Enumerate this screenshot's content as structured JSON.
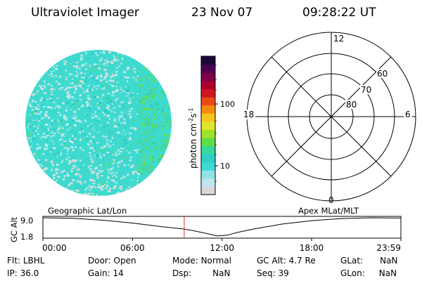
{
  "header": {
    "instrument": "Ultraviolet Imager",
    "date": "23 Nov 07",
    "time": "09:28:22 UT"
  },
  "colorbar": {
    "label_base": "photon cm",
    "label_exp1": "-2",
    "label_mid": "s",
    "label_exp2": "-1",
    "ticks": [
      "100",
      "10"
    ],
    "colors": [
      "#d8d8d8",
      "#bfe6ea",
      "#8fe3e6",
      "#3fdad7",
      "#2ecfc4",
      "#37d899",
      "#5ddf4a",
      "#9be22a",
      "#dfe62a",
      "#f7c31e",
      "#f58a10",
      "#ec4a14",
      "#d1161f",
      "#aa0030",
      "#7d0046",
      "#4d0050",
      "#1a0a3c"
    ]
  },
  "polar_plot": {
    "mlt_labels": {
      "top": "12",
      "bottom": "0",
      "left": "18",
      "right": "6"
    },
    "lat_labels": [
      "60",
      "70",
      "80"
    ]
  },
  "timeline": {
    "left_caption": "Geographic Lat/Lon",
    "right_caption": "Apex MLat/MLT",
    "axis_title": "GC Alt",
    "y_ticks": [
      "9.0",
      "1.8"
    ],
    "x_ticks": [
      "00:00",
      "06:00",
      "12:00",
      "18:00",
      "23:59"
    ],
    "marker_time": "09:28",
    "marker_color": "#d03030"
  },
  "chart_data": {
    "type": "line",
    "title": "",
    "xlabel": "",
    "ylabel": "GC Alt",
    "ylim": [
      1.8,
      9.0
    ],
    "xlim": [
      "00:00",
      "23:59"
    ],
    "series": [
      {
        "x": [
          "00:00",
          "02:00",
          "04:00",
          "06:00",
          "08:00",
          "09:28",
          "10:00",
          "11:00",
          "11:40",
          "12:20",
          "13:00",
          "14:00",
          "16:00",
          "18:00",
          "20:00",
          "22:00",
          "23:59"
        ],
        "values": [
          9.0,
          8.8,
          8.1,
          7.0,
          5.6,
          4.7,
          4.2,
          3.0,
          2.1,
          2.4,
          3.4,
          4.6,
          6.6,
          7.9,
          8.7,
          9.0,
          8.9
        ]
      }
    ]
  },
  "footer": {
    "row1": [
      {
        "label": "Flt:",
        "value": "LBHL"
      },
      {
        "label": "Door:",
        "value": "Open"
      },
      {
        "label": "Mode:",
        "value": "Normal"
      },
      {
        "label": "GC Alt:",
        "value": "4.7 Re"
      },
      {
        "label": "GLat:",
        "value": "NaN"
      }
    ],
    "row2": [
      {
        "label": "IP:",
        "value": "36.0"
      },
      {
        "label": "Gain:",
        "value": "14"
      },
      {
        "label": "Dsp:",
        "value": "NaN"
      },
      {
        "label": "Seq:",
        "value": "39"
      },
      {
        "label": "GLon:",
        "value": "NaN"
      }
    ]
  }
}
